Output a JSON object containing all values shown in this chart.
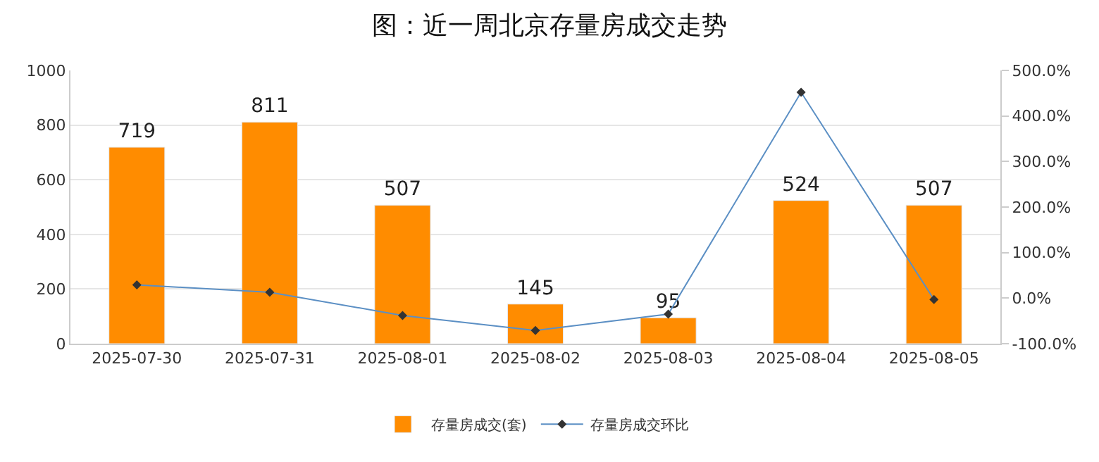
{
  "chart_data": {
    "type": "bar",
    "title": "图：近一周北京存量房成交走势",
    "categories": [
      "2025-07-30",
      "2025-07-31",
      "2025-08-01",
      "2025-08-02",
      "2025-08-03",
      "2025-08-04",
      "2025-08-05"
    ],
    "series": [
      {
        "name": "存量房成交(套)",
        "color": "#ff8c00",
        "values": [
          719,
          811,
          507,
          145,
          95,
          524,
          507
        ],
        "data_labels": true
      },
      {
        "name": "存量房成交环比",
        "type": "line",
        "axis": "y2",
        "color": "#5b8fc4",
        "marker": "diamond",
        "values": [
          29,
          13,
          -38,
          -71,
          -35,
          452,
          -3
        ]
      }
    ],
    "ylim": [
      0,
      1000
    ],
    "yticks": [
      0,
      200,
      400,
      600,
      800,
      1000
    ],
    "y2lim": [
      -100,
      500
    ],
    "y2ticks": [
      {
        "value": -100,
        "label": "-100.0%"
      },
      {
        "value": 0,
        "label": "0.0%"
      },
      {
        "value": 100,
        "label": "100.0%"
      },
      {
        "value": 200,
        "label": "200.0%"
      },
      {
        "value": 300,
        "label": "300.0%"
      },
      {
        "value": 400,
        "label": "400.0%"
      },
      {
        "value": 500,
        "label": "500.0%"
      }
    ],
    "grid": "y",
    "legend": "bottom"
  }
}
